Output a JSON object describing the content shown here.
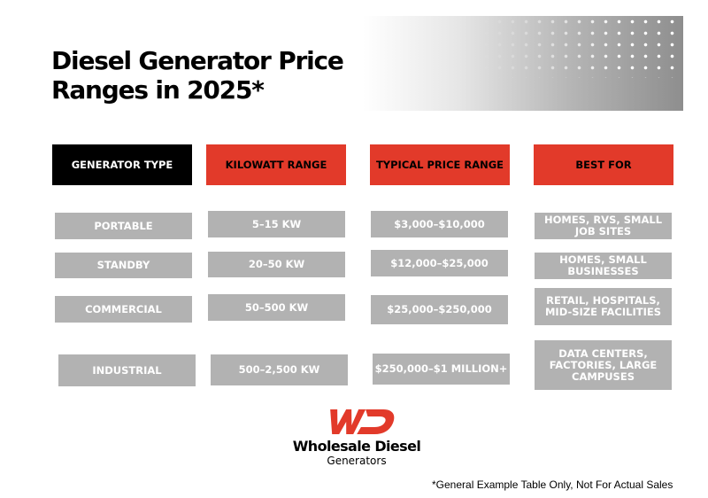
{
  "title": "Diesel Generator Price Ranges in 2025*",
  "colors": {
    "header_black": "#000000",
    "header_red": "#e23a2a",
    "row_gray": "#b2b2b2"
  },
  "table": {
    "headers": [
      "GENERATOR TYPE",
      "KILOWATT RANGE",
      "TYPICAL PRICE RANGE",
      "BEST FOR"
    ],
    "rows": [
      [
        "PORTABLE",
        "5–15 KW",
        "$3,000–$10,000",
        "HOMES, RVS, SMALL JOB SITES"
      ],
      [
        "STANDBY",
        "20–50 KW",
        "$12,000–$25,000",
        "HOMES, SMALL BUSINESSES"
      ],
      [
        "COMMERCIAL",
        "50–500 KW",
        "$25,000–$250,000",
        "RETAIL, HOSPITALS, MID-SIZE FACILITIES"
      ],
      [
        "INDUSTRIAL",
        "500–2,500 KW",
        "$250,000–$1 MILLION+",
        "DATA CENTERS, FACTORIES, LARGE CAMPUSES"
      ]
    ]
  },
  "brand": {
    "name_line1": "Wholesale Diesel",
    "name_line2": "Generators",
    "logo_icon": "wd-logo-icon"
  },
  "footnote": "*General Example Table Only, Not For Actual Sales"
}
